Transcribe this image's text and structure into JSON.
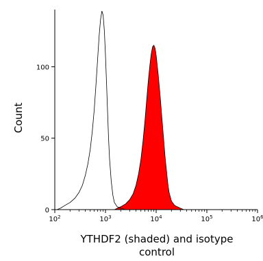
{
  "chart_data": {
    "type": "area",
    "xscale": "log",
    "xlim": [
      100,
      1000000
    ],
    "ylim": [
      0,
      140
    ],
    "ylabel": "Count",
    "xlabel_lines": [
      "YTHDF2 (shaded) and isotype",
      "control"
    ],
    "x_ticks": [
      {
        "value": 100,
        "mantissa": "10",
        "exp": "2"
      },
      {
        "value": 1000,
        "mantissa": "10",
        "exp": "3"
      },
      {
        "value": 10000,
        "mantissa": "10",
        "exp": "4"
      },
      {
        "value": 100000,
        "mantissa": "10",
        "exp": "5"
      },
      {
        "value": 1000000,
        "mantissa": "10",
        "exp": "6"
      }
    ],
    "y_ticks": [
      0,
      50,
      100
    ],
    "colors": {
      "shaded": "#ff0000",
      "outline": "#000000",
      "isotype": "#000000"
    },
    "series": [
      {
        "role": "isotype control",
        "style": "outline",
        "x": [
          110,
          130,
          160,
          200,
          250,
          300,
          350,
          400,
          450,
          500,
          550,
          600,
          650,
          700,
          750,
          800,
          850,
          900,
          950,
          1000,
          1050,
          1100,
          1150,
          1200,
          1300,
          1400,
          1500,
          1700,
          2000,
          2500,
          3000
        ],
        "y": [
          0,
          1,
          3,
          5,
          8,
          12,
          17,
          24,
          32,
          42,
          55,
          70,
          88,
          105,
          122,
          133,
          139,
          136,
          125,
          108,
          88,
          68,
          50,
          36,
          20,
          10,
          5,
          2,
          1,
          0,
          0
        ]
      },
      {
        "role": "YTHDF2",
        "style": "shaded",
        "x": [
          1500,
          2000,
          2500,
          3000,
          3500,
          4000,
          4500,
          5000,
          5500,
          6000,
          6500,
          7000,
          7500,
          8000,
          8500,
          9000,
          9500,
          10000,
          11000,
          12000,
          13000,
          14000,
          15000,
          16000,
          17000,
          18000,
          20000,
          23000,
          26000,
          30000,
          35000
        ],
        "y": [
          0,
          2,
          4,
          7,
          11,
          17,
          25,
          35,
          48,
          62,
          77,
          90,
          101,
          109,
          114,
          115,
          113,
          108,
          94,
          79,
          64,
          50,
          37,
          27,
          18,
          12,
          6,
          3,
          2,
          1,
          0
        ]
      }
    ]
  }
}
